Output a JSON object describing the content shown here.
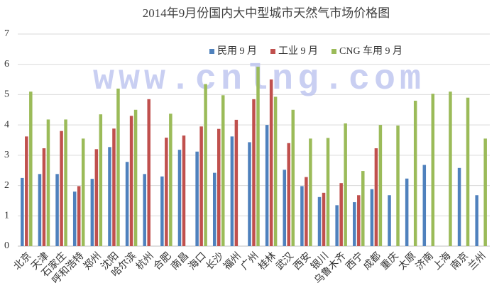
{
  "chart_data": {
    "type": "bar",
    "title": "2014年9月份国内大中型城市天然气市场价格图",
    "watermark": "www.cnlng.com",
    "categories": [
      "北京",
      "天津",
      "石家庄",
      "呼和浩特",
      "郑州",
      "沈阳",
      "哈尔滨",
      "杭州",
      "合肥",
      "南昌",
      "海口",
      "长沙",
      "福州",
      "广州",
      "桂林",
      "武汉",
      "西安",
      "银川",
      "乌鲁木齐",
      "西宁",
      "成都",
      "重庆",
      "太原",
      "济南",
      "上海",
      "南京",
      "兰州"
    ],
    "series": [
      {
        "name": "民用 9 月",
        "color": "#4f81bd",
        "values": [
          2.25,
          2.38,
          2.38,
          1.8,
          2.22,
          3.27,
          2.78,
          2.38,
          2.3,
          3.18,
          3.12,
          2.42,
          3.62,
          3.43,
          4.0,
          2.52,
          1.98,
          1.62,
          1.35,
          1.45,
          1.88,
          1.68,
          2.23,
          2.68,
          null,
          2.58,
          1.68
        ]
      },
      {
        "name": "工业 9 月",
        "color": "#c0504d",
        "values": [
          3.62,
          3.23,
          3.8,
          1.98,
          3.2,
          3.88,
          4.3,
          4.85,
          3.58,
          3.65,
          3.95,
          3.87,
          4.17,
          4.85,
          5.5,
          3.4,
          2.28,
          1.76,
          2.08,
          1.68,
          3.23,
          null,
          null,
          null,
          null,
          null,
          null
        ]
      },
      {
        "name": "CNG 车用 9 月",
        "color": "#9bbb59",
        "values": [
          5.1,
          4.18,
          4.18,
          3.55,
          4.35,
          5.2,
          4.5,
          null,
          4.37,
          null,
          5.35,
          4.98,
          null,
          5.92,
          4.93,
          4.5,
          3.55,
          3.57,
          4.05,
          2.48,
          4.0,
          3.98,
          4.8,
          5.03,
          5.1,
          4.9,
          3.55
        ]
      }
    ],
    "ylim": [
      0,
      7
    ],
    "yticks": [
      0,
      1,
      2,
      3,
      4,
      5,
      6,
      7
    ],
    "grid": true,
    "legend": "top"
  }
}
